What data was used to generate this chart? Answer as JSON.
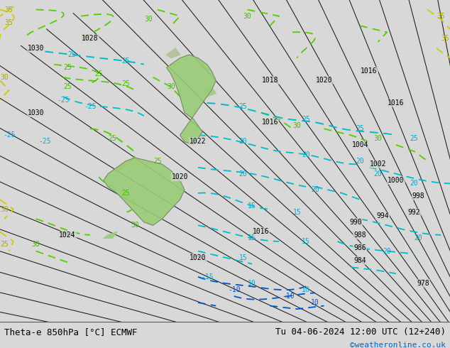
{
  "title_left": "Theta-e 850hPa [°C] ECMWF",
  "title_right": "Tu 04-06-2024 12:00 UTC (12+240)",
  "credit": "©weatheronline.co.uk",
  "bg_color": "#d8d8d8",
  "map_bg_color": "#d4d4d4",
  "credit_color": "#0066cc",
  "fig_width": 6.34,
  "fig_height": 4.9,
  "dpi": 100
}
